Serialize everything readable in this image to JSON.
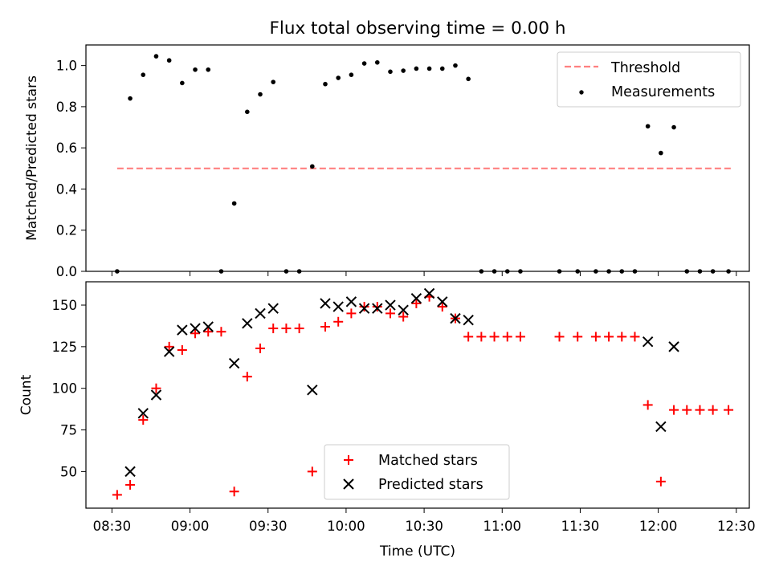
{
  "figure": {
    "title": "Flux total observing time = 0.00 h",
    "xlabel": "Time (UTC)"
  },
  "chart_data": [
    {
      "type": "scatter",
      "ylabel": "Matched/Predicted stars",
      "xlim": [
        "08:20",
        "12:35"
      ],
      "ylim": [
        0,
        1.1
      ],
      "yticks": [
        0.0,
        0.2,
        0.4,
        0.6,
        0.8,
        1.0
      ],
      "xticks": [
        "08:30",
        "09:00",
        "09:30",
        "10:00",
        "10:30",
        "11:00",
        "11:30",
        "12:00",
        "12:30"
      ],
      "grid": false,
      "legend": "top-right",
      "threshold": {
        "name": "Threshold",
        "value": 0.5,
        "x": [
          "08:32",
          "12:28"
        ],
        "color": "#ff8080",
        "style": "dashed"
      },
      "series": [
        {
          "name": "Measurements",
          "color": "#000000",
          "marker": "dot",
          "points": [
            [
              "08:32",
              0.0
            ],
            [
              "08:37",
              0.84
            ],
            [
              "08:42",
              0.955
            ],
            [
              "08:47",
              1.045
            ],
            [
              "08:52",
              1.025
            ],
            [
              "08:57",
              0.915
            ],
            [
              "09:02",
              0.98
            ],
            [
              "09:07",
              0.98
            ],
            [
              "09:12",
              0.0
            ],
            [
              "09:17",
              0.33
            ],
            [
              "09:22",
              0.775
            ],
            [
              "09:27",
              0.86
            ],
            [
              "09:32",
              0.92
            ],
            [
              "09:37",
              0.0
            ],
            [
              "09:42",
              0.0
            ],
            [
              "09:47",
              0.51
            ],
            [
              "09:52",
              0.91
            ],
            [
              "09:57",
              0.94
            ],
            [
              "10:02",
              0.955
            ],
            [
              "10:07",
              1.01
            ],
            [
              "10:12",
              1.015
            ],
            [
              "10:17",
              0.97
            ],
            [
              "10:22",
              0.975
            ],
            [
              "10:27",
              0.985
            ],
            [
              "10:32",
              0.985
            ],
            [
              "10:37",
              0.985
            ],
            [
              "10:42",
              1.0
            ],
            [
              "10:47",
              0.935
            ],
            [
              "10:52",
              0.0
            ],
            [
              "10:57",
              0.0
            ],
            [
              "11:02",
              0.0
            ],
            [
              "11:07",
              0.0
            ],
            [
              "11:22",
              0.0
            ],
            [
              "11:29",
              0.0
            ],
            [
              "11:36",
              0.0
            ],
            [
              "11:41",
              0.0
            ],
            [
              "11:46",
              0.0
            ],
            [
              "11:51",
              0.0
            ],
            [
              "11:56",
              0.705
            ],
            [
              "12:01",
              0.575
            ],
            [
              "12:06",
              0.7
            ],
            [
              "12:11",
              0.0
            ],
            [
              "12:16",
              0.0
            ],
            [
              "12:21",
              0.0
            ],
            [
              "12:27",
              0.0
            ]
          ]
        }
      ]
    },
    {
      "type": "scatter",
      "ylabel": "Count",
      "xlim": [
        "08:20",
        "12:35"
      ],
      "ylim": [
        28,
        164
      ],
      "yticks": [
        50,
        75,
        100,
        125,
        150
      ],
      "xticks": [
        "08:30",
        "09:00",
        "09:30",
        "10:00",
        "10:30",
        "11:00",
        "11:30",
        "12:00",
        "12:30"
      ],
      "grid": false,
      "legend": "bottom-center",
      "series": [
        {
          "name": "Matched stars",
          "color": "#ff0000",
          "marker": "plus",
          "points": [
            [
              "08:32",
              36
            ],
            [
              "08:37",
              42
            ],
            [
              "08:42",
              81
            ],
            [
              "08:47",
              100
            ],
            [
              "08:52",
              125
            ],
            [
              "08:57",
              123
            ],
            [
              "09:02",
              133
            ],
            [
              "09:07",
              134
            ],
            [
              "09:12",
              134
            ],
            [
              "09:17",
              38
            ],
            [
              "09:22",
              107
            ],
            [
              "09:27",
              124
            ],
            [
              "09:32",
              136
            ],
            [
              "09:37",
              136
            ],
            [
              "09:42",
              136
            ],
            [
              "09:47",
              50
            ],
            [
              "09:52",
              137
            ],
            [
              "09:57",
              140
            ],
            [
              "10:02",
              145
            ],
            [
              "10:07",
              149
            ],
            [
              "10:12",
              149
            ],
            [
              "10:17",
              145
            ],
            [
              "10:22",
              143
            ],
            [
              "10:27",
              151
            ],
            [
              "10:32",
              155
            ],
            [
              "10:37",
              149
            ],
            [
              "10:42",
              142
            ],
            [
              "10:47",
              131
            ],
            [
              "10:52",
              131
            ],
            [
              "10:57",
              131
            ],
            [
              "11:02",
              131
            ],
            [
              "11:07",
              131
            ],
            [
              "11:22",
              131
            ],
            [
              "11:29",
              131
            ],
            [
              "11:36",
              131
            ],
            [
              "11:41",
              131
            ],
            [
              "11:46",
              131
            ],
            [
              "11:51",
              131
            ],
            [
              "11:56",
              90
            ],
            [
              "12:01",
              44
            ],
            [
              "12:06",
              87
            ],
            [
              "12:11",
              87
            ],
            [
              "12:16",
              87
            ],
            [
              "12:21",
              87
            ],
            [
              "12:27",
              87
            ]
          ]
        },
        {
          "name": "Predicted stars",
          "color": "#000000",
          "marker": "x",
          "points": [
            [
              "08:37",
              50
            ],
            [
              "08:42",
              85
            ],
            [
              "08:47",
              96
            ],
            [
              "08:52",
              122
            ],
            [
              "08:57",
              135
            ],
            [
              "09:02",
              136
            ],
            [
              "09:07",
              137
            ],
            [
              "09:17",
              115
            ],
            [
              "09:22",
              139
            ],
            [
              "09:27",
              145
            ],
            [
              "09:32",
              148
            ],
            [
              "09:47",
              99
            ],
            [
              "09:52",
              151
            ],
            [
              "09:57",
              149
            ],
            [
              "10:02",
              152
            ],
            [
              "10:07",
              148
            ],
            [
              "10:12",
              148
            ],
            [
              "10:17",
              150
            ],
            [
              "10:22",
              147
            ],
            [
              "10:27",
              154
            ],
            [
              "10:32",
              157
            ],
            [
              "10:37",
              152
            ],
            [
              "10:42",
              142
            ],
            [
              "10:47",
              141
            ],
            [
              "11:56",
              128
            ],
            [
              "12:01",
              77
            ],
            [
              "12:06",
              125
            ]
          ]
        }
      ]
    }
  ]
}
